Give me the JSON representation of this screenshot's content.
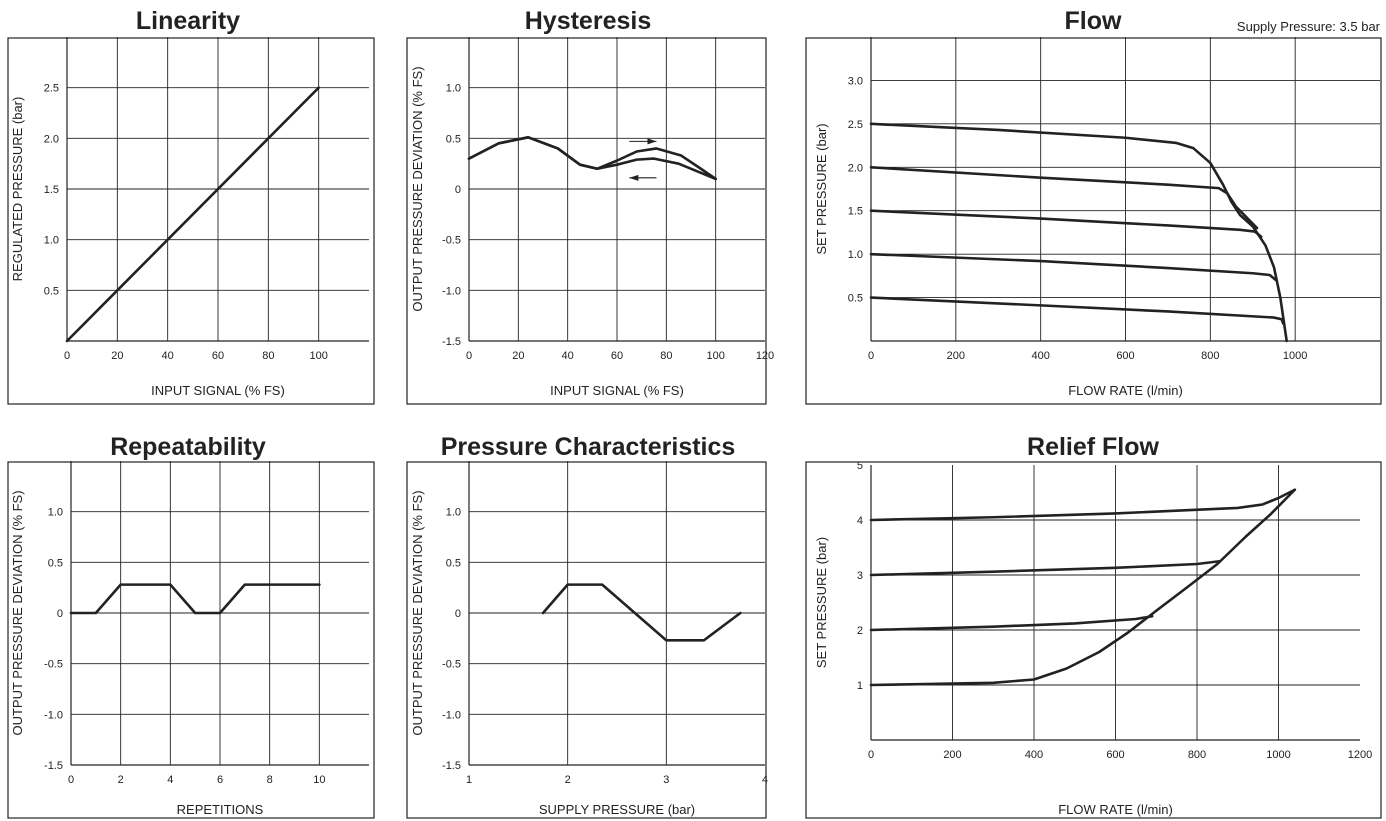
{
  "chart_data": [
    {
      "type": "line",
      "title": "Linearity",
      "xlabel": "INPUT SIGNAL (% FS)",
      "ylabel": "REGULATED PRESSURE (bar)",
      "xlim": [
        0,
        120
      ],
      "ylim": [
        0,
        3.0
      ],
      "xticks": [
        0,
        20,
        40,
        60,
        80,
        100
      ],
      "xtick_labels": [
        "0",
        "20",
        "40",
        "60",
        "80",
        "100"
      ],
      "yticks": [
        0.5,
        1.0,
        1.5,
        2.0,
        2.5
      ],
      "ytick_labels": [
        "0.5",
        "1.0",
        "1.5",
        "2.0",
        "2.5"
      ],
      "xgrid": [
        20,
        40,
        60,
        80,
        100
      ],
      "ygrid": [
        0.5,
        1.0,
        1.5,
        2.0,
        2.5
      ],
      "grid": true,
      "series": [
        {
          "points": [
            [
              0,
              0
            ],
            [
              100,
              2.5
            ]
          ]
        }
      ]
    },
    {
      "type": "line",
      "title": "Hysteresis",
      "xlabel": "INPUT SIGNAL (% FS)",
      "ylabel": "OUTPUT PRESSURE DEVIATION (% FS)",
      "xlim": [
        0,
        120
      ],
      "ylim": [
        -1.5,
        1.5
      ],
      "xticks": [
        0,
        20,
        40,
        60,
        80,
        100,
        120
      ],
      "xtick_labels": [
        "0",
        "20",
        "40",
        "60",
        "80",
        "100",
        "120"
      ],
      "yticks": [
        1.0,
        0.5,
        0,
        -0.5,
        -1.0,
        -1.5
      ],
      "ytick_labels": [
        "1.0",
        "0.5",
        "0",
        "-0.5",
        "-1.0",
        "-1.5"
      ],
      "xgrid": [
        20,
        40,
        60,
        80,
        100
      ],
      "ygrid": [
        1.0,
        0.5,
        0,
        -0.5,
        -1.0
      ],
      "grid": true,
      "series": [
        {
          "points": [
            [
              0,
              0.3
            ],
            [
              12,
              0.45
            ],
            [
              24,
              0.51
            ],
            [
              36,
              0.4
            ],
            [
              45,
              0.24
            ],
            [
              52,
              0.2
            ],
            [
              60,
              0.28
            ],
            [
              68,
              0.37
            ],
            [
              76,
              0.4
            ],
            [
              86,
              0.33
            ],
            [
              94,
              0.2
            ],
            [
              100,
              0.1
            ]
          ]
        },
        {
          "points": [
            [
              0,
              0.3
            ],
            [
              12,
              0.45
            ],
            [
              24,
              0.51
            ],
            [
              36,
              0.4
            ],
            [
              45,
              0.24
            ],
            [
              52,
              0.2
            ],
            [
              60,
              0.24
            ],
            [
              68,
              0.29
            ],
            [
              75,
              0.3
            ],
            [
              85,
              0.25
            ],
            [
              93,
              0.17
            ],
            [
              100,
              0.1
            ]
          ]
        }
      ],
      "arrows": [
        {
          "from": [
            65,
            0.47
          ],
          "to": [
            76,
            0.47
          ]
        },
        {
          "from": [
            76,
            0.11
          ],
          "to": [
            65,
            0.11
          ]
        }
      ]
    },
    {
      "type": "line",
      "title": "Flow",
      "note": "Supply Pressure: 3.5 bar",
      "xlabel": "FLOW RATE (l/min)",
      "ylabel": "SET PRESSURE (bar)",
      "xlim": [
        0,
        1200
      ],
      "ylim": [
        0,
        3.5
      ],
      "xticks": [
        0,
        200,
        400,
        600,
        800,
        1000
      ],
      "xtick_labels": [
        "0",
        "200",
        "400",
        "600",
        "800",
        "1000"
      ],
      "yticks": [
        0.5,
        1.0,
        1.5,
        2.0,
        2.5,
        3.0
      ],
      "ytick_labels": [
        "0.5",
        "1.0",
        "1.5",
        "2.0",
        "2.5",
        "3.0"
      ],
      "xgrid": [
        200,
        400,
        600,
        800,
        1000
      ],
      "ygrid": [
        0.5,
        1.0,
        1.5,
        2.0,
        2.5,
        3.0
      ],
      "grid": true,
      "series": [
        {
          "points": [
            [
              0,
              2.5
            ],
            [
              300,
              2.43
            ],
            [
              600,
              2.34
            ],
            [
              720,
              2.28
            ],
            [
              760,
              2.22
            ],
            [
              800,
              2.05
            ],
            [
              830,
              1.8
            ],
            [
              850,
              1.6
            ],
            [
              870,
              1.45
            ],
            [
              900,
              1.32
            ],
            [
              930,
              1.1
            ],
            [
              950,
              0.85
            ],
            [
              965,
              0.5
            ],
            [
              980,
              0
            ]
          ]
        },
        {
          "points": [
            [
              0,
              2.0
            ],
            [
              400,
              1.88
            ],
            [
              700,
              1.8
            ],
            [
              820,
              1.76
            ],
            [
              840,
              1.7
            ],
            [
              860,
              1.55
            ],
            [
              880,
              1.45
            ],
            [
              910,
              1.3
            ]
          ]
        },
        {
          "points": [
            [
              0,
              1.5
            ],
            [
              400,
              1.41
            ],
            [
              700,
              1.33
            ],
            [
              870,
              1.28
            ],
            [
              905,
              1.26
            ],
            [
              920,
              1.2
            ]
          ]
        },
        {
          "points": [
            [
              0,
              1.0
            ],
            [
              400,
              0.92
            ],
            [
              700,
              0.84
            ],
            [
              900,
              0.78
            ],
            [
              940,
              0.76
            ],
            [
              955,
              0.7
            ]
          ]
        },
        {
          "points": [
            [
              0,
              0.5
            ],
            [
              400,
              0.41
            ],
            [
              700,
              0.34
            ],
            [
              950,
              0.27
            ],
            [
              968,
              0.25
            ],
            [
              972,
              0.2
            ]
          ]
        }
      ]
    },
    {
      "type": "line",
      "title": "Repeatability",
      "xlabel": "REPETITIONS",
      "ylabel": "OUTPUT PRESSURE DEVIATION (% FS)",
      "xlim": [
        0,
        12
      ],
      "ylim": [
        -1.5,
        1.5
      ],
      "xticks": [
        0,
        2,
        4,
        6,
        8,
        10
      ],
      "xtick_labels": [
        "0",
        "2",
        "4",
        "6",
        "8",
        "10"
      ],
      "yticks": [
        1.0,
        0.5,
        0,
        -0.5,
        -1.0,
        -1.5
      ],
      "ytick_labels": [
        "1.0",
        "0.5",
        "0",
        "-0.5",
        "-1.0",
        "-1.5"
      ],
      "xgrid": [
        2,
        4,
        6,
        8,
        10
      ],
      "ygrid": [
        1.0,
        0.5,
        0,
        -0.5,
        -1.0
      ],
      "grid": true,
      "series": [
        {
          "points": [
            [
              0,
              0
            ],
            [
              1,
              0
            ],
            [
              2,
              0.28
            ],
            [
              4,
              0.28
            ],
            [
              5,
              0
            ],
            [
              6,
              0
            ],
            [
              7,
              0.28
            ],
            [
              10,
              0.28
            ]
          ]
        }
      ]
    },
    {
      "type": "line",
      "title": "Pressure Characteristics",
      "xlabel": "SUPPLY PRESSURE (bar)",
      "ylabel": "OUTPUT PRESSURE DEVIATION (% FS)",
      "xlim": [
        1,
        4
      ],
      "ylim": [
        -1.5,
        1.5
      ],
      "xticks": [
        1,
        2,
        3,
        4
      ],
      "xtick_labels": [
        "1",
        "2",
        "3",
        "4"
      ],
      "yticks": [
        1.0,
        0.5,
        0,
        -0.5,
        -1.0,
        -1.5
      ],
      "ytick_labels": [
        "1.0",
        "0.5",
        "0",
        "-0.5",
        "-1.0",
        "-1.5"
      ],
      "xgrid": [
        2,
        3
      ],
      "ygrid": [
        1.0,
        0.5,
        0,
        -0.5,
        -1.0
      ],
      "grid": true,
      "series": [
        {
          "points": [
            [
              1.75,
              0
            ],
            [
              2.0,
              0.28
            ],
            [
              2.35,
              0.28
            ],
            [
              3.0,
              -0.27
            ],
            [
              3.38,
              -0.27
            ],
            [
              3.75,
              0
            ]
          ]
        }
      ]
    },
    {
      "type": "line",
      "title": "Relief Flow",
      "xlabel": "FLOW RATE (l/min)",
      "ylabel": "SET PRESSURE (bar)",
      "xlim": [
        0,
        1200
      ],
      "ylim": [
        0,
        5
      ],
      "xticks": [
        0,
        200,
        400,
        600,
        800,
        1000,
        1200
      ],
      "xtick_labels": [
        "0",
        "200",
        "400",
        "600",
        "800",
        "1000",
        "1200"
      ],
      "yticks": [
        1,
        2,
        3,
        4,
        5
      ],
      "ytick_labels": [
        "1",
        "2",
        "3",
        "4",
        "5"
      ],
      "xgrid": [
        200,
        400,
        600,
        800,
        1000
      ],
      "ygrid": [
        1,
        2,
        3,
        4
      ],
      "grid": true,
      "series": [
        {
          "points": [
            [
              0,
              1.0
            ],
            [
              150,
              1.02
            ],
            [
              300,
              1.04
            ],
            [
              400,
              1.1
            ],
            [
              480,
              1.3
            ],
            [
              560,
              1.6
            ],
            [
              630,
              1.95
            ],
            [
              700,
              2.35
            ],
            [
              780,
              2.8
            ],
            [
              850,
              3.2
            ],
            [
              920,
              3.7
            ],
            [
              980,
              4.1
            ],
            [
              1040,
              4.55
            ]
          ]
        },
        {
          "points": [
            [
              0,
              2.0
            ],
            [
              300,
              2.06
            ],
            [
              500,
              2.12
            ],
            [
              650,
              2.2
            ],
            [
              690,
              2.25
            ]
          ]
        },
        {
          "points": [
            [
              0,
              3.0
            ],
            [
              300,
              3.06
            ],
            [
              600,
              3.13
            ],
            [
              800,
              3.2
            ],
            [
              855,
              3.25
            ]
          ]
        },
        {
          "points": [
            [
              0,
              4.0
            ],
            [
              300,
              4.05
            ],
            [
              600,
              4.12
            ],
            [
              900,
              4.22
            ],
            [
              960,
              4.28
            ],
            [
              1000,
              4.4
            ],
            [
              1040,
              4.55
            ]
          ]
        }
      ]
    }
  ]
}
